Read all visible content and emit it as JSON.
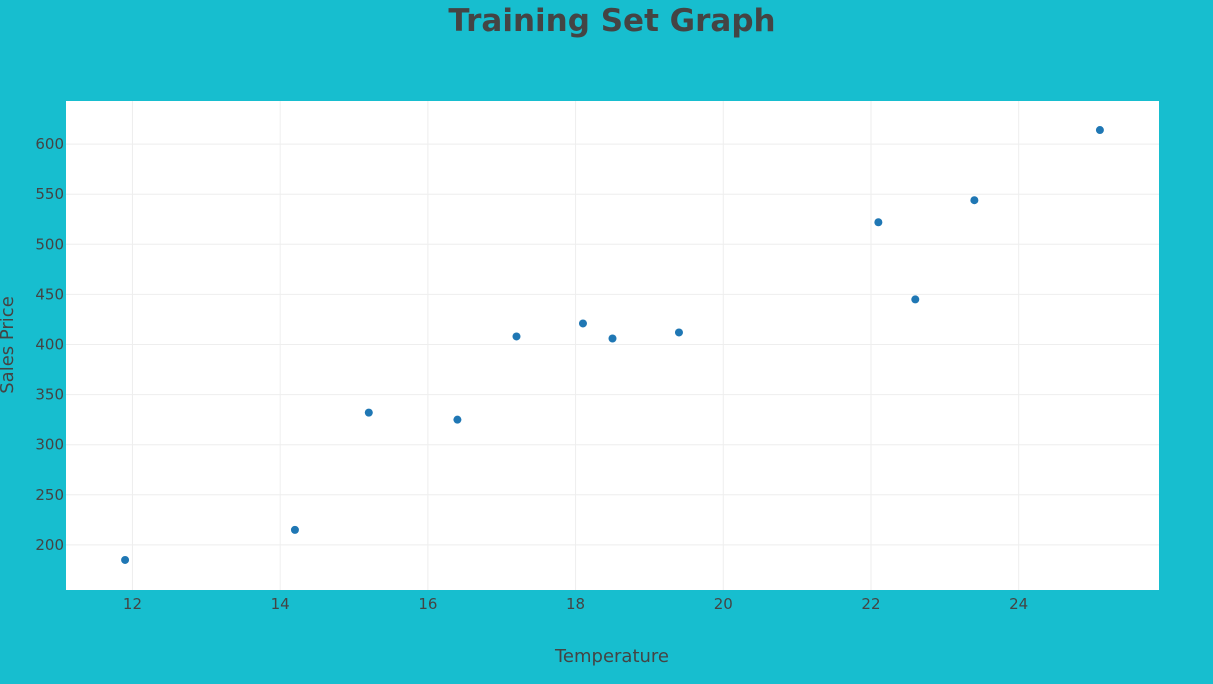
{
  "colors": {
    "background": "#17becf",
    "plot_background": "#ffffff",
    "gridline": "#eeeeee",
    "text": "#444444",
    "marker": "#1f77b4"
  },
  "chart_data": {
    "type": "scatter",
    "title": "Training Set Graph",
    "xlabel": "Temperature",
    "ylabel": "Sales Price",
    "xlim": [
      11.1,
      25.9
    ],
    "ylim": [
      155,
      643
    ],
    "xticks": [
      12,
      14,
      16,
      18,
      20,
      22,
      24
    ],
    "yticks": [
      200,
      250,
      300,
      350,
      400,
      450,
      500,
      550,
      600
    ],
    "grid": true,
    "legend": "none",
    "series": [
      {
        "marker_color": "#1f77b4",
        "points": [
          {
            "x": 11.9,
            "y": 185
          },
          {
            "x": 14.2,
            "y": 215
          },
          {
            "x": 15.2,
            "y": 332
          },
          {
            "x": 16.4,
            "y": 325
          },
          {
            "x": 17.2,
            "y": 408
          },
          {
            "x": 18.1,
            "y": 421
          },
          {
            "x": 18.5,
            "y": 406
          },
          {
            "x": 19.4,
            "y": 412
          },
          {
            "x": 22.1,
            "y": 522
          },
          {
            "x": 22.6,
            "y": 445
          },
          {
            "x": 23.4,
            "y": 544
          },
          {
            "x": 25.1,
            "y": 614
          }
        ]
      }
    ]
  }
}
